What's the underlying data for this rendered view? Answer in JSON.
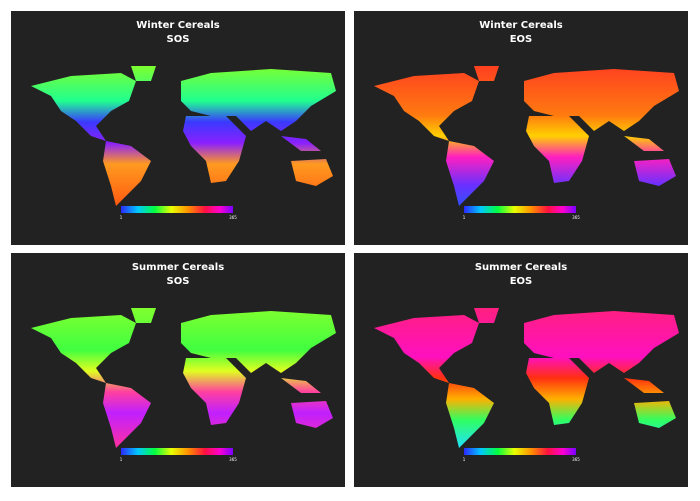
{
  "panels": [
    {
      "title": "Winter Cereals",
      "subtitle": "SOS",
      "scale_min": 1,
      "scale_max": 365
    },
    {
      "title": "Winter Cereals",
      "subtitle": "EOS",
      "scale_min": 1,
      "scale_max": 365
    },
    {
      "title": "Summer Cereals",
      "subtitle": "SOS",
      "scale_min": 1,
      "scale_max": 365
    },
    {
      "title": "Summer Cereals",
      "subtitle": "EOS",
      "scale_min": 1,
      "scale_max": 365
    }
  ]
}
